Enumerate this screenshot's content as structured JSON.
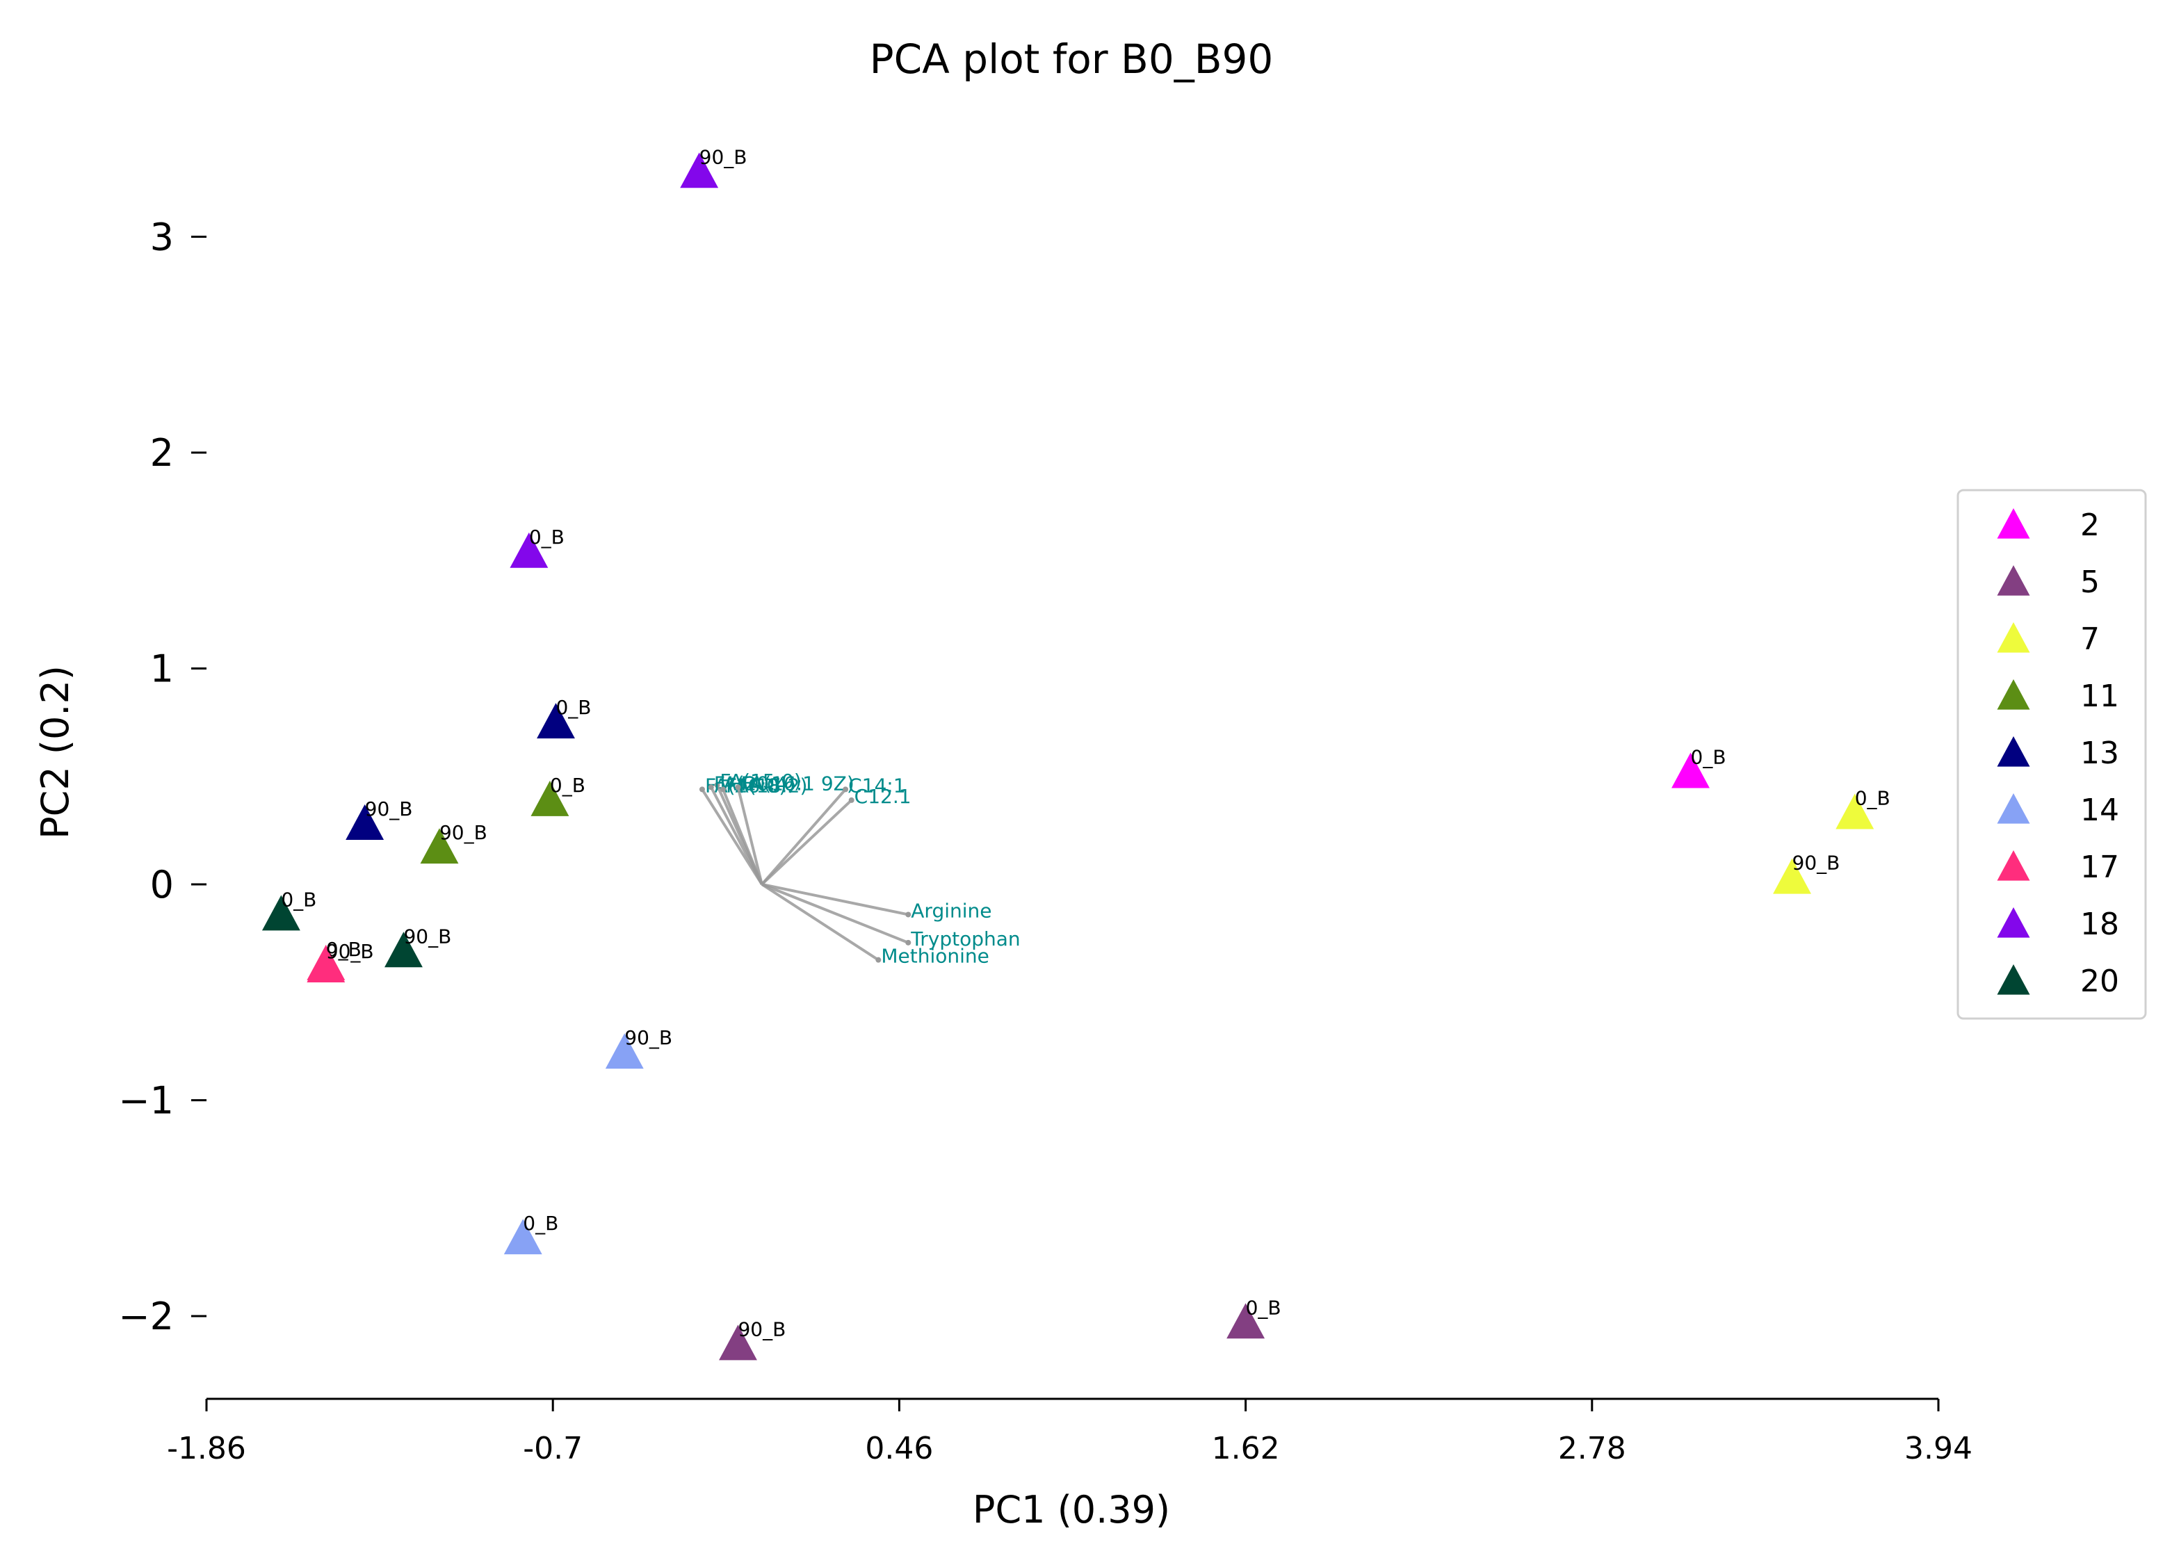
{
  "chart_data": {
    "type": "scatter",
    "title": "PCA plot for B0_B90",
    "xlabel": "PC1 (0.39)",
    "ylabel": "PC2 (0.2)",
    "xlim": [
      -1.86,
      3.94
    ],
    "ylim": [
      -2.4,
      3.55
    ],
    "x_ticks": [
      -1.86,
      -0.7,
      0.46,
      1.62,
      2.78,
      3.94
    ],
    "x_tick_labels": [
      "-1.86",
      "-0.7",
      "0.46",
      "1.62",
      "2.78",
      "3.94"
    ],
    "y_ticks": [
      3,
      2,
      1,
      0,
      -1,
      -2
    ],
    "y_tick_labels": [
      "3",
      "2",
      "1",
      "0",
      "−1",
      "−2"
    ],
    "grid": false,
    "legend_position": "right",
    "marker": "triangle",
    "series": [
      {
        "name": "2",
        "color": "#ff00ff",
        "points": [
          {
            "x": 3.11,
            "y": 0.52,
            "label": "0_B"
          }
        ]
      },
      {
        "name": "5",
        "color": "#833f82",
        "points": [
          {
            "x": 1.62,
            "y": -2.03,
            "label": "0_B"
          },
          {
            "x": -0.08,
            "y": -2.13,
            "label": "90_B"
          }
        ]
      },
      {
        "name": "7",
        "color": "#eefb3c",
        "points": [
          {
            "x": 3.66,
            "y": 0.33,
            "label": "0_B"
          },
          {
            "x": 3.45,
            "y": 0.03,
            "label": "90_B"
          }
        ]
      },
      {
        "name": "11",
        "color": "#5c8e14",
        "points": [
          {
            "x": -0.71,
            "y": 0.39,
            "label": "0_B"
          },
          {
            "x": -1.08,
            "y": 0.17,
            "label": "90_B"
          }
        ]
      },
      {
        "name": "13",
        "color": "#010080",
        "points": [
          {
            "x": -0.69,
            "y": 0.75,
            "label": "0_B"
          },
          {
            "x": -1.33,
            "y": 0.28,
            "label": "90_B"
          }
        ]
      },
      {
        "name": "14",
        "color": "#87a2f5",
        "points": [
          {
            "x": -0.8,
            "y": -1.64,
            "label": "0_B"
          },
          {
            "x": -0.46,
            "y": -0.78,
            "label": "90_B"
          }
        ]
      },
      {
        "name": "17",
        "color": "#ff2d7d",
        "points": [
          {
            "x": -1.46,
            "y": -0.37,
            "label": "0_B"
          },
          {
            "x": -1.46,
            "y": -0.38,
            "label": "90_B"
          }
        ]
      },
      {
        "name": "18",
        "color": "#8307eb",
        "points": [
          {
            "x": -0.78,
            "y": 1.54,
            "label": "0_B"
          },
          {
            "x": -0.21,
            "y": 3.3,
            "label": "90_B"
          }
        ]
      },
      {
        "name": "20",
        "color": "#004532",
        "points": [
          {
            "x": -1.61,
            "y": -0.14,
            "label": "0_B"
          },
          {
            "x": -1.2,
            "y": -0.31,
            "label": "90_B"
          }
        ]
      }
    ],
    "loadings": {
      "origin": {
        "x": 0.0,
        "y": 0.0
      },
      "color": "#999999",
      "label_color": "#008b8b",
      "vectors": [
        {
          "name": "FA(16:0)",
          "x": -0.2,
          "y": 0.44
        },
        {
          "name": "FA(15:0)",
          "x": -0.15,
          "y": 0.46
        },
        {
          "name": "FA(20:4)",
          "x": -0.17,
          "y": 0.45
        },
        {
          "name": "FA(18:2)",
          "x": -0.13,
          "y": 0.44
        },
        {
          "name": "FA(16:1 9Z)",
          "x": -0.08,
          "y": 0.45
        },
        {
          "name": "C14:1",
          "x": 0.28,
          "y": 0.44
        },
        {
          "name": "C12.1",
          "x": 0.3,
          "y": 0.39
        },
        {
          "name": "Arginine",
          "x": 0.49,
          "y": -0.14
        },
        {
          "name": "Tryptophan",
          "x": 0.49,
          "y": -0.27
        },
        {
          "name": "Methionine",
          "x": 0.39,
          "y": -0.35
        }
      ]
    }
  }
}
